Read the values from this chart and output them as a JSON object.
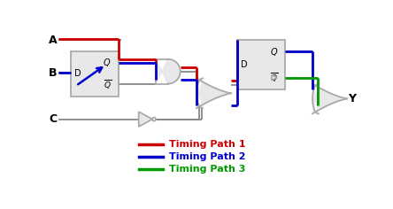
{
  "bg_color": "#ffffff",
  "path1_color": "#cc0000",
  "path2_color": "#0000cc",
  "path3_color": "#009900",
  "wire_color": "#888888",
  "gate_color": "#aaaaaa",
  "fill_color": "#e8e8e8",
  "text_color": "#000000",
  "legend": [
    {
      "label": "Timing Path 1",
      "color": "#cc0000"
    },
    {
      "label": "Timing Path 2",
      "color": "#0000cc"
    },
    {
      "label": "Timing Path 3",
      "color": "#009900"
    }
  ]
}
